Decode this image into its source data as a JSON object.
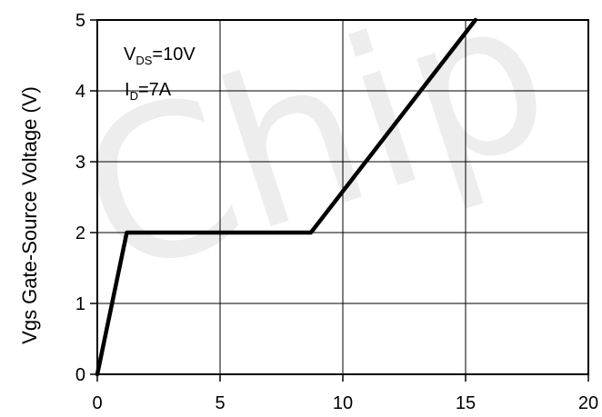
{
  "chart_data": {
    "type": "line",
    "ylabel": "Vgs Gate-Source Voltage (V)",
    "xlabel": "",
    "xlim": [
      0,
      20
    ],
    "ylim": [
      0,
      5
    ],
    "xticks": [
      0,
      5,
      10,
      15,
      20
    ],
    "yticks": [
      0,
      1,
      2,
      3,
      4,
      5
    ],
    "xtick_labels": [
      "0",
      "5",
      "10",
      "15",
      "20"
    ],
    "ytick_labels": [
      "0",
      "1",
      "2",
      "3",
      "4",
      "5"
    ],
    "grid": true,
    "series": [
      {
        "x": [
          0,
          1.2,
          8.7,
          15.4
        ],
        "y": [
          0,
          2,
          2,
          5
        ]
      }
    ],
    "annotations": {
      "vds": {
        "main": "V",
        "sub": "DS",
        "value": "=10V"
      },
      "id": {
        "main": "I",
        "sub": "D",
        "value": "=7A"
      }
    },
    "watermark": "Chip",
    "colors": {
      "line": "#000000",
      "grid": "#000000",
      "background": "#ffffff"
    }
  }
}
